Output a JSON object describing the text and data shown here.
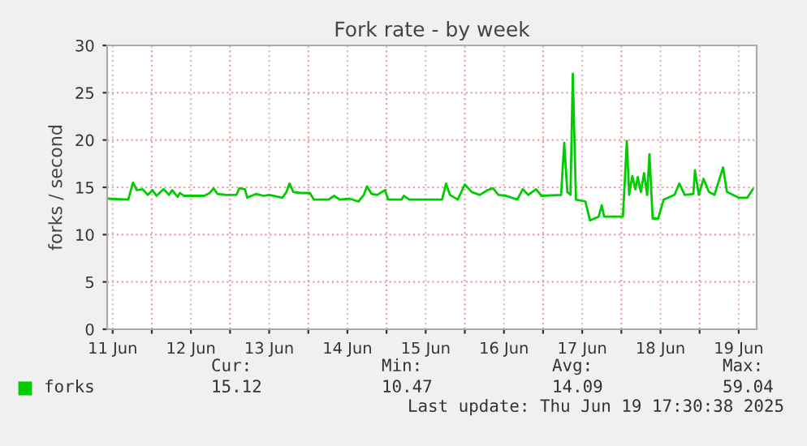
{
  "chart_data": {
    "type": "line",
    "title": "Fork rate - by week",
    "ylabel": "forks / second",
    "x": [
      "2025-06-11T10:19",
      "2025-06-11T16:48",
      "2025-06-11T18:14",
      "2025-06-11T19:26",
      "2025-06-11T21:07",
      "2025-06-11T22:48",
      "2025-06-12T00:14",
      "2025-06-12T01:26",
      "2025-06-12T03:36",
      "2025-06-12T05:17",
      "2025-06-12T06:14",
      "2025-06-12T07:55",
      "2025-06-12T08:38",
      "2025-06-12T09:50",
      "2025-06-12T12:00",
      "2025-06-12T16:05",
      "2025-06-12T17:46",
      "2025-06-12T18:58",
      "2025-06-12T20:10",
      "2025-06-12T22:48",
      "2025-06-13T01:55",
      "2025-06-13T02:53",
      "2025-06-13T04:34",
      "2025-06-13T05:17",
      "2025-06-13T07:55",
      "2025-06-13T10:19",
      "2025-06-13T12:00",
      "2025-06-13T16:05",
      "2025-06-13T17:17",
      "2025-06-13T18:14",
      "2025-06-13T19:26",
      "2025-06-13T21:50",
      "2025-06-14T00:29",
      "2025-06-14T01:41",
      "2025-06-14T06:14",
      "2025-06-14T07:55",
      "2025-06-14T09:36",
      "2025-06-14T12:43",
      "2025-06-14T15:22",
      "2025-06-14T17:02",
      "2025-06-14T18:00",
      "2025-06-14T19:26",
      "2025-06-14T21:07",
      "2025-06-14T23:31",
      "2025-06-15T00:29",
      "2025-06-15T04:34",
      "2025-06-15T05:17",
      "2025-06-15T06:58",
      "2025-06-15T17:02",
      "2025-06-15T18:14",
      "2025-06-15T19:26",
      "2025-06-15T21:50",
      "2025-06-16T00:00",
      "2025-06-16T02:10",
      "2025-06-16T04:34",
      "2025-06-16T06:58",
      "2025-06-16T08:38",
      "2025-06-16T10:19",
      "2025-06-16T12:43",
      "2025-06-16T16:05",
      "2025-06-16T17:46",
      "2025-06-16T19:26",
      "2025-06-16T21:50",
      "2025-06-16T23:31",
      "2025-06-17T05:31",
      "2025-06-17T06:29",
      "2025-06-17T07:26",
      "2025-06-17T08:24",
      "2025-06-17T09:07",
      "2025-06-17T10:05",
      "2025-06-17T12:58",
      "2025-06-17T14:24",
      "2025-06-17T17:02",
      "2025-06-17T18:00",
      "2025-06-17T18:43",
      "2025-06-18T00:29",
      "2025-06-18T01:41",
      "2025-06-18T02:24",
      "2025-06-18T03:22",
      "2025-06-18T04:19",
      "2025-06-18T05:02",
      "2025-06-18T06:00",
      "2025-06-18T06:58",
      "2025-06-18T07:55",
      "2025-06-18T08:38",
      "2025-06-18T09:36",
      "2025-06-18T11:17",
      "2025-06-18T12:58",
      "2025-06-18T16:19",
      "2025-06-18T17:46",
      "2025-06-18T19:26",
      "2025-06-18T22:05",
      "2025-06-18T22:34",
      "2025-06-18T23:46",
      "2025-06-19T01:12",
      "2025-06-19T02:53",
      "2025-06-19T04:34",
      "2025-06-19T07:12",
      "2025-06-19T08:24",
      "2025-06-19T12:00",
      "2025-06-19T14:38",
      "2025-06-19T16:19"
    ],
    "series": [
      {
        "name": "forks",
        "color": "#00cc00",
        "values": [
          13.8,
          13.7,
          15.5,
          14.7,
          14.8,
          14.2,
          14.7,
          14.1,
          14.8,
          14.2,
          14.7,
          14.0,
          14.4,
          14.1,
          14.1,
          14.1,
          14.4,
          14.9,
          14.3,
          14.2,
          14.2,
          14.9,
          14.8,
          13.9,
          14.3,
          14.1,
          14.2,
          13.9,
          14.5,
          15.4,
          14.5,
          14.4,
          14.4,
          13.7,
          13.7,
          14.1,
          13.7,
          13.8,
          13.5,
          14.2,
          15.1,
          14.3,
          14.2,
          14.7,
          13.7,
          13.7,
          14.1,
          13.7,
          13.7,
          15.4,
          14.2,
          13.7,
          15.3,
          14.5,
          14.2,
          14.7,
          14.9,
          14.2,
          14.1,
          13.7,
          14.8,
          14.2,
          14.8,
          14.1,
          14.2,
          19.7,
          14.5,
          14.2,
          27.0,
          13.7,
          13.5,
          11.5,
          11.9,
          13.1,
          11.9,
          11.9,
          19.9,
          14.2,
          16.2,
          14.8,
          16.1,
          14.5,
          16.5,
          14.2,
          18.5,
          11.7,
          11.7,
          13.7,
          14.2,
          15.4,
          14.2,
          14.3,
          16.8,
          14.2,
          15.9,
          14.5,
          14.2,
          17.1,
          14.5,
          13.9,
          13.9,
          14.8
        ]
      }
    ],
    "xlim": [
      "2025-06-11T10:19",
      "2025-06-19T17:30"
    ],
    "xticks": [
      {
        "value": "2025-06-11T12:00",
        "label": "11 Jun"
      },
      {
        "value": "2025-06-12",
        "label": null
      },
      {
        "value": "2025-06-12T12:00",
        "label": "12 Jun"
      },
      {
        "value": "2025-06-13",
        "label": null
      },
      {
        "value": "2025-06-13T12:00",
        "label": "13 Jun"
      },
      {
        "value": "2025-06-14",
        "label": null
      },
      {
        "value": "2025-06-14T12:00",
        "label": "14 Jun"
      },
      {
        "value": "2025-06-15",
        "label": null
      },
      {
        "value": "2025-06-15T12:00",
        "label": "15 Jun"
      },
      {
        "value": "2025-06-16",
        "label": null
      },
      {
        "value": "2025-06-16T12:00",
        "label": "16 Jun"
      },
      {
        "value": "2025-06-17",
        "label": null
      },
      {
        "value": "2025-06-17T12:00",
        "label": "17 Jun"
      },
      {
        "value": "2025-06-18",
        "label": null
      },
      {
        "value": "2025-06-18T12:00",
        "label": "18 Jun"
      },
      {
        "value": "2025-06-19",
        "label": null
      },
      {
        "value": "2025-06-19T12:00",
        "label": "19 Jun"
      }
    ],
    "ylim": [
      0,
      30
    ],
    "yticks": [
      0,
      5,
      10,
      15,
      20,
      25,
      30
    ],
    "grid": true,
    "legend": "bottom left",
    "marker": "none",
    "line_style": "solid",
    "annotations": [
      "Cur:",
      "Min:",
      "Avg:",
      "Max:",
      "15.12",
      "10.47",
      "14.09",
      "59.04",
      "Last update: Thu Jun 19 17:30:38 2025"
    ]
  }
}
